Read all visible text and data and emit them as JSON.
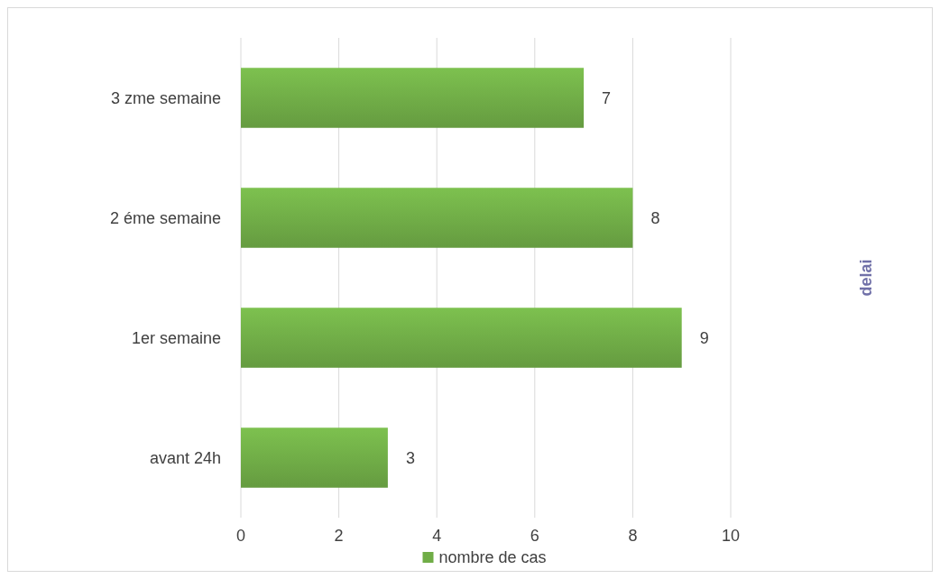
{
  "chart_data": {
    "type": "bar",
    "orientation": "horizontal",
    "categories": [
      "3 zme semaine",
      "2 éme semaine",
      "1er semaine",
      "avant 24h"
    ],
    "series": [
      {
        "name": "nombre de cas",
        "color": "#70ad47",
        "values": [
          7,
          8,
          9,
          3
        ]
      }
    ],
    "xlim": [
      0,
      10
    ],
    "xticks": [
      0,
      2,
      4,
      6,
      8,
      10
    ],
    "annotations": [
      "delai"
    ],
    "grid": "x",
    "legend": "bottom",
    "data_labels": true
  }
}
